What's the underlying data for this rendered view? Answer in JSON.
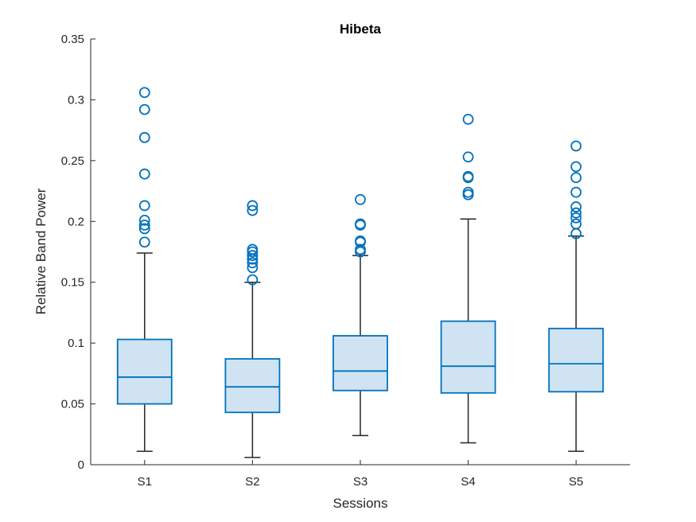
{
  "chart_data": {
    "type": "box",
    "title": "Hibeta",
    "xlabel": "Sessions",
    "ylabel": "Relative Band Power",
    "ylim": [
      0,
      0.35
    ],
    "yticks": [
      "0",
      "0.05",
      "0.1",
      "0.15",
      "0.2",
      "0.25",
      "0.3",
      "0.35"
    ],
    "categories": [
      "S1",
      "S2",
      "S3",
      "S4",
      "S5"
    ],
    "colors": {
      "box_edge": "#0072BD",
      "box_fill": "#CFE3F2",
      "whisker": "#262626",
      "outlier": "#0072BD",
      "axis": "#262626"
    },
    "boxes": [
      {
        "label": "S1",
        "whisker_low": 0.011,
        "q1": 0.05,
        "median": 0.072,
        "q3": 0.103,
        "whisker_high": 0.174,
        "outliers": [
          0.306,
          0.292,
          0.269,
          0.239,
          0.213,
          0.201,
          0.197,
          0.194,
          0.183
        ]
      },
      {
        "label": "S2",
        "whisker_low": 0.006,
        "q1": 0.043,
        "median": 0.064,
        "q3": 0.087,
        "whisker_high": 0.15,
        "outliers": [
          0.213,
          0.209,
          0.177,
          0.175,
          0.172,
          0.169,
          0.166,
          0.162,
          0.152
        ]
      },
      {
        "label": "S3",
        "whisker_low": 0.024,
        "q1": 0.061,
        "median": 0.077,
        "q3": 0.106,
        "whisker_high": 0.172,
        "outliers": [
          0.218,
          0.198,
          0.197,
          0.184,
          0.183,
          0.177,
          0.175
        ]
      },
      {
        "label": "S4",
        "whisker_low": 0.018,
        "q1": 0.059,
        "median": 0.081,
        "q3": 0.118,
        "whisker_high": 0.202,
        "outliers": [
          0.284,
          0.253,
          0.237,
          0.236,
          0.224,
          0.222,
          0.222
        ]
      },
      {
        "label": "S5",
        "whisker_low": 0.011,
        "q1": 0.06,
        "median": 0.083,
        "q3": 0.112,
        "whisker_high": 0.188,
        "outliers": [
          0.262,
          0.245,
          0.236,
          0.224,
          0.212,
          0.207,
          0.203,
          0.198,
          0.19
        ]
      }
    ]
  }
}
